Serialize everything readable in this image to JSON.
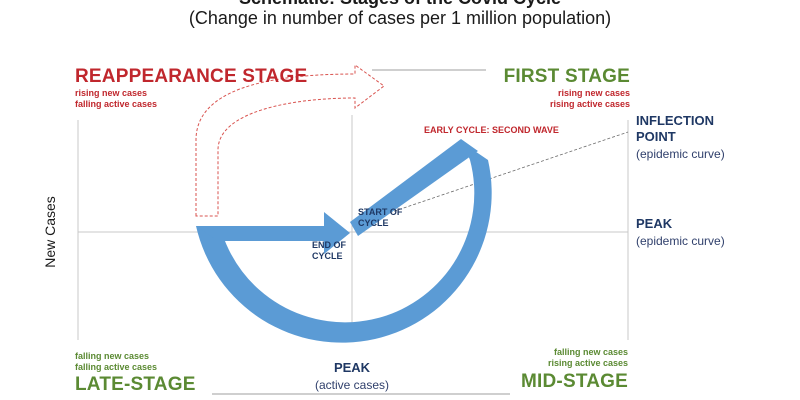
{
  "title": "Schematic: Stages of the Covid Cycle",
  "subtitle": "(Change in number of cases per 1 million population)",
  "y_axis_label": "New Cases",
  "stages": {
    "reappearance": {
      "title": "REAPPEARANCE STAGE",
      "line1": "rising new cases",
      "line2": "falling active cases"
    },
    "first": {
      "title": "FIRST STAGE",
      "line1": "rising new cases",
      "line2": "rising active cases"
    },
    "late": {
      "title": "LATE-STAGE",
      "line1": "falling new cases",
      "line2": "falling active cases"
    },
    "mid": {
      "title": "MID-STAGE",
      "line1": "falling new cases",
      "line2": "rising active cases"
    }
  },
  "annotations": {
    "early_cycle": "EARLY CYCLE: SECOND WAVE",
    "start_line1": "START OF",
    "start_line2": "CYCLE",
    "end_line1": "END OF",
    "end_line2": "CYCLE",
    "inflection_line1": "INFLECTION",
    "inflection_line2": "POINT",
    "inflection_sub": "(epidemic curve)",
    "peak_right": "PEAK",
    "peak_right_sub": "(epidemic  curve)",
    "peak_bottom": "PEAK",
    "peak_bottom_sub": "(active cases)"
  },
  "colors": {
    "cycle_arrow": "#5b9bd5",
    "red_text": "#c0272d",
    "green_text": "#5b8a33",
    "navy_text": "#1f3864",
    "axis": "#c8c8c8"
  }
}
